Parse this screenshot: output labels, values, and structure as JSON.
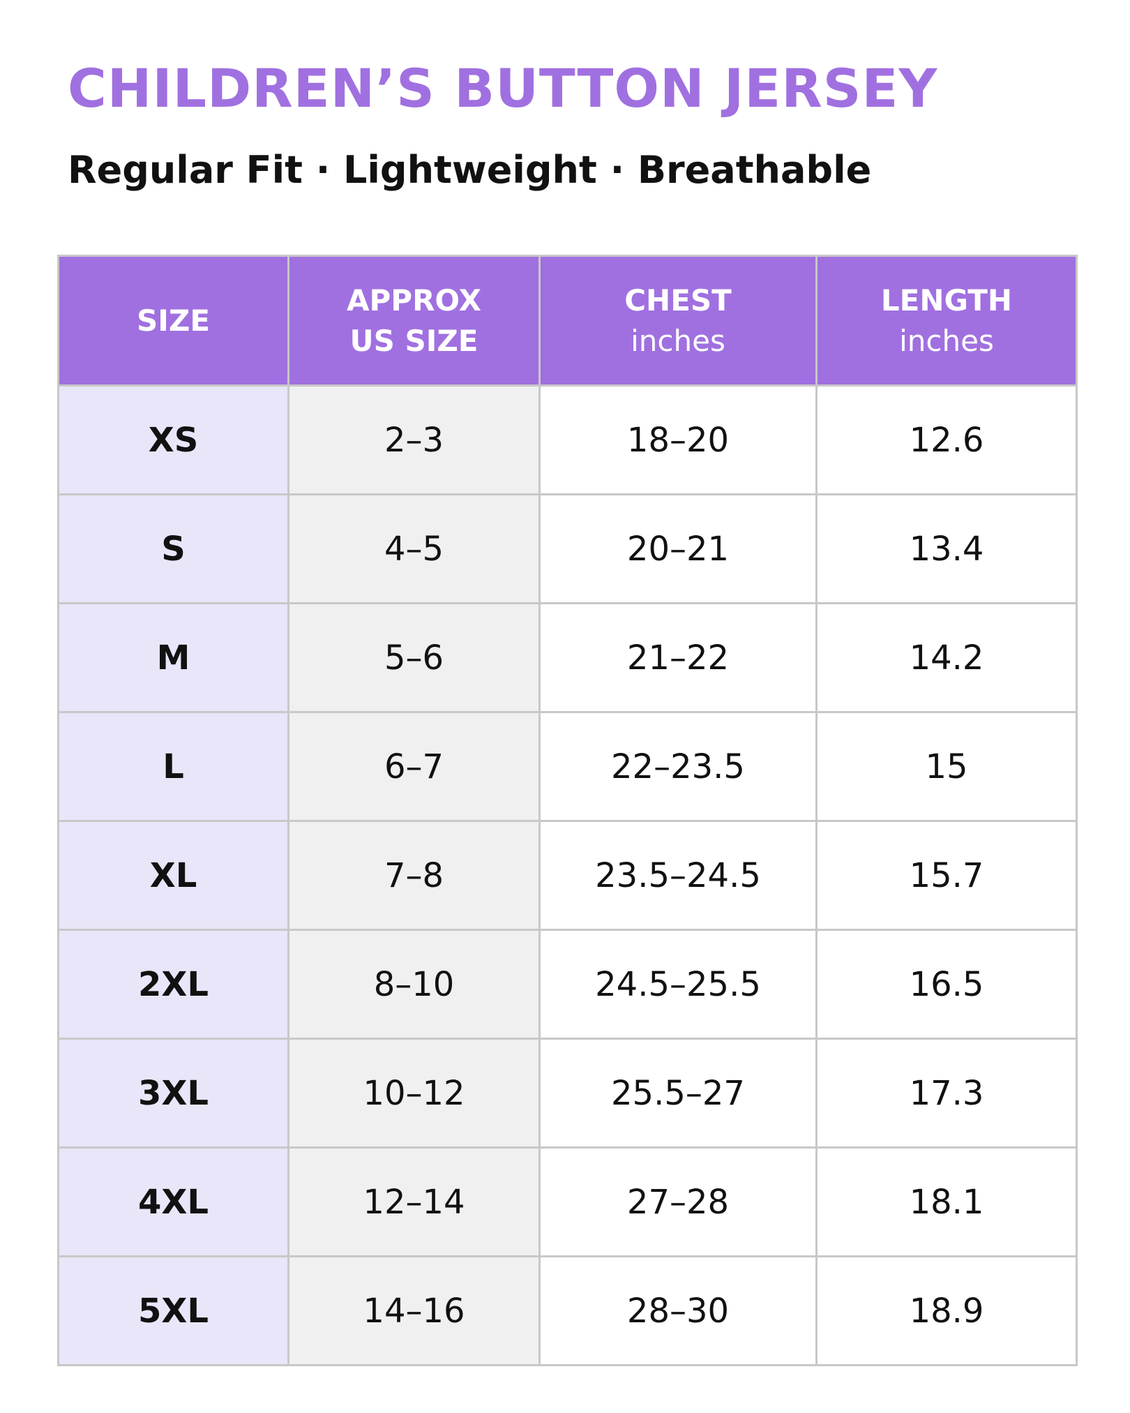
{
  "header": {
    "title": "CHILDREN’S BUTTON JERSEY",
    "subtitle": "Regular Fit · Lightweight · Breathable"
  },
  "table": {
    "columns": [
      {
        "lines": [
          "SIZE"
        ]
      },
      {
        "lines": [
          "APPROX",
          "US SIZE"
        ]
      },
      {
        "lines": [
          "CHEST"
        ],
        "unit": "inches"
      },
      {
        "lines": [
          "LENGTH"
        ],
        "unit": "inches"
      }
    ],
    "rows": [
      [
        "XS",
        "2–3",
        "18–20",
        "12.6"
      ],
      [
        "S",
        "4–5",
        "20–21",
        "13.4"
      ],
      [
        "M",
        "5–6",
        "21–22",
        "14.2"
      ],
      [
        "L",
        "6–7",
        "22–23.5",
        "15"
      ],
      [
        "XL",
        "7–8",
        "23.5–24.5",
        "15.7"
      ],
      [
        "2XL",
        "8–10",
        "24.5–25.5",
        "16.5"
      ],
      [
        "3XL",
        "10–12",
        "25.5–27",
        "17.3"
      ],
      [
        "4XL",
        "12–14",
        "27–28",
        "18.1"
      ],
      [
        "5XL",
        "14–16",
        "28–30",
        "18.9"
      ]
    ]
  }
}
